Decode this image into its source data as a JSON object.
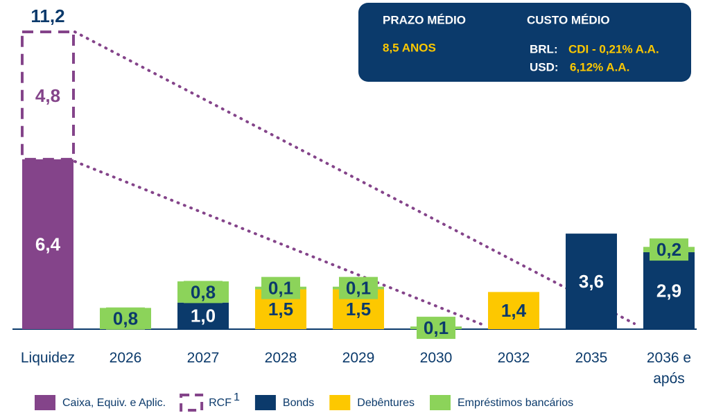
{
  "chart_data": {
    "type": "stacked_bar",
    "categories": [
      "Liquidez",
      "2026",
      "2027",
      "2028",
      "2029",
      "2030",
      "2032",
      "2035",
      "2036 e após"
    ],
    "series": [
      {
        "name": "Caixa, Equiv. e Aplic.",
        "color": "#84448a",
        "label_color": "#ffffff",
        "values": [
          6.4,
          null,
          null,
          null,
          null,
          null,
          null,
          null,
          null
        ],
        "value_labels": [
          "6,4",
          null,
          null,
          null,
          null,
          null,
          null,
          null,
          null
        ]
      },
      {
        "name": "RCF",
        "footnote": "1",
        "color": "#84448a",
        "dashed": true,
        "label_color": "#84448a",
        "values": [
          4.8,
          null,
          null,
          null,
          null,
          null,
          null,
          null,
          null
        ],
        "value_labels": [
          "4,8",
          null,
          null,
          null,
          null,
          null,
          null,
          null,
          null
        ]
      },
      {
        "name": "Bonds",
        "color": "#0b3a6b",
        "label_color": "#ffffff",
        "values": [
          null,
          null,
          1.0,
          null,
          null,
          null,
          null,
          3.6,
          2.9
        ],
        "value_labels": [
          null,
          null,
          "1,0",
          null,
          null,
          null,
          null,
          "3,6",
          "2,9"
        ]
      },
      {
        "name": "Debêntures",
        "color": "#fdc800",
        "label_color": "#0b3a6b",
        "values": [
          null,
          null,
          null,
          1.5,
          1.5,
          null,
          1.4,
          null,
          null
        ],
        "value_labels": [
          null,
          null,
          null,
          "1,5",
          "1,5",
          null,
          "1,4",
          null,
          null
        ]
      },
      {
        "name": "Empréstimos bancários",
        "color": "#8cd35a",
        "label_color": "#0b3a6b",
        "label_box": true,
        "values": [
          null,
          0.8,
          0.8,
          0.1,
          0.1,
          0.1,
          null,
          null,
          0.2
        ],
        "value_labels": [
          null,
          "0,8",
          "0,8",
          "0,1",
          "0,1",
          "0,1",
          null,
          null,
          "0,2"
        ]
      }
    ],
    "total": {
      "value": 11.2,
      "label": "11,2"
    },
    "ylim": [
      0,
      12
    ],
    "info_box": {
      "prazo_title": "PRAZO MÉDIO",
      "prazo_value": "8,5 ANOS",
      "custo_title": "CUSTO MÉDIO",
      "brl_label": "BRL:",
      "brl_value": "CDI - 0,21% A.A.",
      "usd_label": "USD:",
      "usd_value": "6,12% A.A."
    }
  }
}
